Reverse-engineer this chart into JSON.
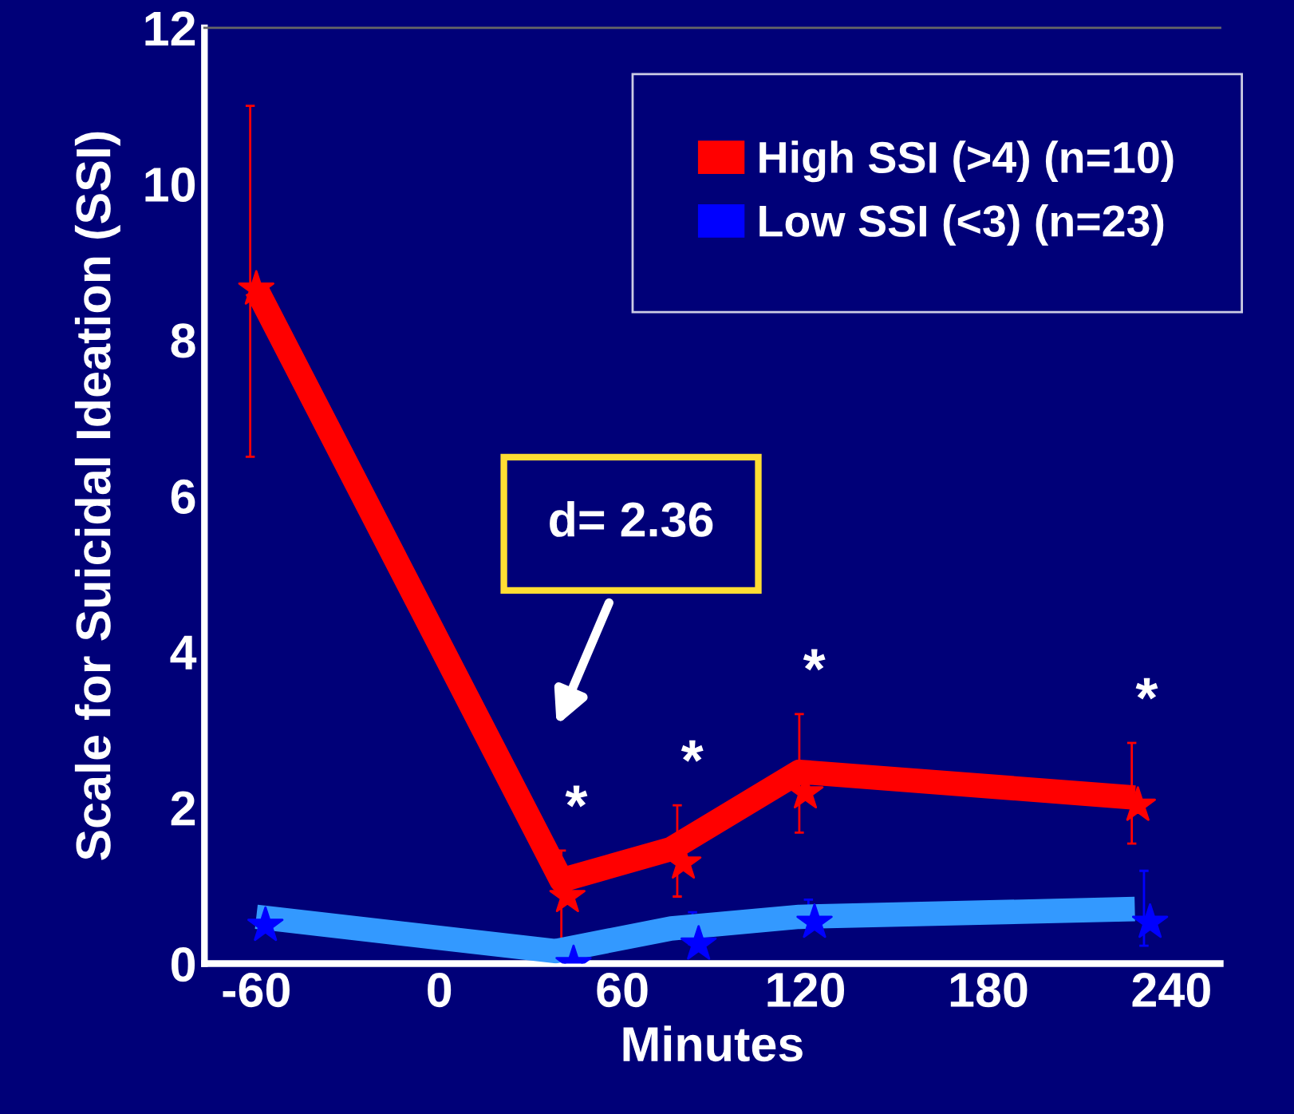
{
  "chart_data": {
    "type": "line",
    "xlabel": "Minutes",
    "ylabel": "Scale for Suicidal Ideation (SSI)",
    "xlim": [
      -77,
      256
    ],
    "xticks": [
      -60,
      0,
      60,
      120,
      180,
      240
    ],
    "ylim": [
      0,
      12
    ],
    "yticks": [
      0,
      2,
      4,
      6,
      8,
      10,
      12
    ],
    "grid": false,
    "legend": "top right",
    "series": [
      {
        "color": "#ff0000",
        "x": [
          -60,
          40,
          76,
          118,
          228
        ],
        "values": [
          8.65,
          1.07,
          1.47,
          2.46,
          2.13
        ]
      },
      {
        "color": "#3399ff",
        "x": [
          -60,
          38,
          76,
          118,
          228
        ],
        "values": [
          0.6,
          0.16,
          0.45,
          0.6,
          0.7
        ]
      },
      {
        "type": "scatter",
        "name": "High SSI (>4) (n=10)",
        "color": "#ff0000",
        "marker": "star",
        "x": [
          -60,
          42,
          80,
          120,
          229
        ],
        "values": [
          8.65,
          0.86,
          1.29,
          2.19,
          2.03
        ],
        "errors": [
          [
            6.5,
            11.0
          ],
          [
            0.3,
            1.45
          ],
          [
            0.86,
            2.03
          ],
          [
            1.68,
            3.2
          ],
          [
            1.54,
            2.83
          ]
        ]
      },
      {
        "type": "scatter",
        "name": "Low SSI (<3) (n=23)",
        "color": "#0000ff",
        "marker": "star",
        "x": [
          -57,
          44,
          85,
          123,
          233
        ],
        "values": [
          0.49,
          0.0,
          0.25,
          0.53,
          0.53
        ],
        "errors": [
          null,
          null,
          [
            0.25,
            0.66
          ],
          [
            0.53,
            0.82
          ],
          [
            0.23,
            1.19
          ]
        ]
      }
    ],
    "annotations": [
      "d= 2.36",
      "*",
      "*",
      "*",
      "*"
    ]
  }
}
